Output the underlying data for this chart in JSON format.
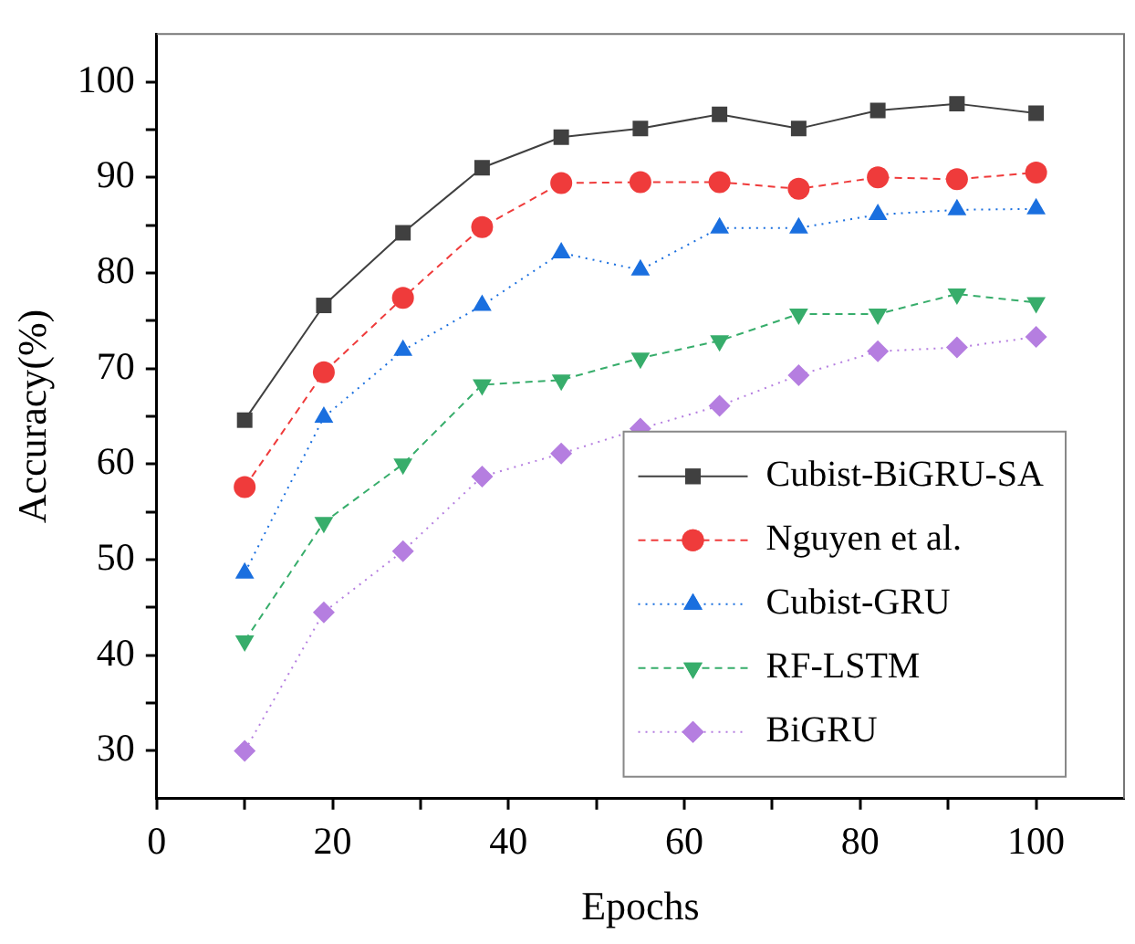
{
  "chart_data": {
    "type": "line",
    "xlabel": "Epochs",
    "ylabel": "Accuracy(%)",
    "x": [
      10,
      19,
      28,
      37,
      46,
      55,
      64,
      73,
      82,
      91,
      100
    ],
    "xlim": [
      0,
      110
    ],
    "xticks": [
      0,
      {
        "value": 10,
        "label": null
      },
      20,
      {
        "value": 30,
        "label": null
      },
      40,
      {
        "value": 50,
        "label": null
      },
      60,
      {
        "value": 70,
        "label": null
      },
      80,
      {
        "value": 90,
        "label": null
      },
      100
    ],
    "ylim": [
      25,
      105
    ],
    "yticks": [
      30,
      {
        "value": 35,
        "label": null
      },
      40,
      {
        "value": 45,
        "label": null
      },
      50,
      {
        "value": 55,
        "label": null
      },
      60,
      {
        "value": 65,
        "label": null
      },
      70,
      {
        "value": 75,
        "label": null
      },
      80,
      {
        "value": 85,
        "label": null
      },
      90,
      {
        "value": 95,
        "label": null
      },
      100
    ],
    "grid": false,
    "legend": "bottom right",
    "series": [
      {
        "name": "Cubist-BiGRU-SA",
        "color": "#404040",
        "marker": "square",
        "line_style": "solid",
        "values": [
          64.6,
          76.6,
          84.2,
          91.0,
          94.2,
          95.1,
          96.6,
          95.1,
          97.0,
          97.7,
          96.7
        ]
      },
      {
        "name": "Nguyen et al.",
        "color": "#ef3b3b",
        "marker": "circle",
        "line_style": "dashed",
        "values": [
          57.6,
          69.6,
          77.4,
          84.8,
          89.4,
          89.5,
          89.5,
          88.8,
          90.0,
          89.8,
          90.5
        ]
      },
      {
        "name": "Cubist-GRU",
        "color": "#1a6fdf",
        "marker": "triangle",
        "line_style": "dotted",
        "values": [
          48.6,
          64.9,
          71.9,
          76.6,
          82.1,
          80.3,
          84.7,
          84.7,
          86.1,
          86.6,
          86.7
        ]
      },
      {
        "name": "RF-LSTM",
        "color": "#37ad6b",
        "marker": "triangle-down",
        "line_style": "dashed",
        "values": [
          41.5,
          53.9,
          60.0,
          68.3,
          68.8,
          71.1,
          72.9,
          75.7,
          75.7,
          77.8,
          76.9
        ]
      },
      {
        "name": "BiGRU",
        "color": "#b57ee0",
        "marker": "diamond",
        "line_style": "dotted",
        "values": [
          30.0,
          44.5,
          50.9,
          58.7,
          61.1,
          63.7,
          66.1,
          69.3,
          71.8,
          72.2,
          73.3
        ]
      }
    ]
  }
}
